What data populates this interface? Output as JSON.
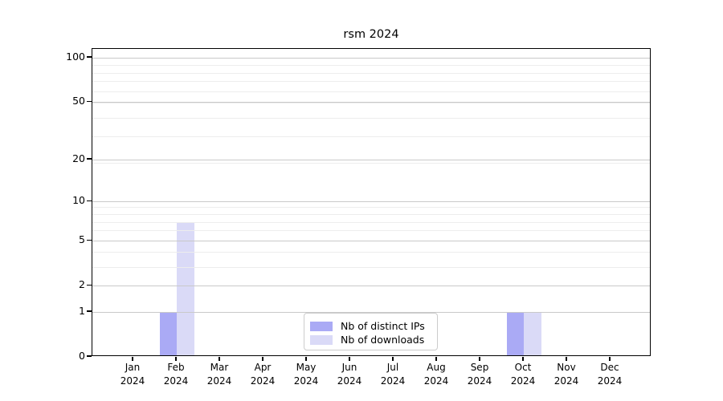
{
  "title": "rsm 2024",
  "chart_data": {
    "type": "bar",
    "title": "rsm 2024",
    "categories": [
      "Jan 2024",
      "Feb 2024",
      "Mar 2024",
      "Apr 2024",
      "May 2024",
      "Jun 2024",
      "Jul 2024",
      "Aug 2024",
      "Sep 2024",
      "Oct 2024",
      "Nov 2024",
      "Dec 2024"
    ],
    "series": [
      {
        "name": "Nb of distinct IPs",
        "color": "#aaaaf5",
        "values": [
          0,
          1,
          0,
          0,
          0,
          0,
          0,
          0,
          0,
          1,
          0,
          0
        ]
      },
      {
        "name": "Nb of downloads",
        "color": "#dadaf7",
        "values": [
          0,
          7,
          0,
          0,
          0,
          0,
          0,
          0,
          0,
          1,
          0,
          0
        ]
      }
    ],
    "xlabel": "",
    "ylabel": "",
    "yscale": "log1p",
    "ylim": [
      0,
      115
    ],
    "y_major_ticks": [
      0,
      1,
      2,
      5,
      10,
      20,
      50,
      100
    ],
    "y_minor_gridlines": [
      3,
      4,
      6,
      7,
      8,
      9,
      19,
      29,
      39,
      49,
      59,
      69,
      79,
      89,
      99
    ],
    "grid": "on",
    "legend_position": "lower center",
    "bar_layout": "grouped-pair",
    "colors": {
      "major_grid": "#c9c9c9",
      "minor_grid": "#ededed",
      "spine": "#000000",
      "background": "#ffffff",
      "text": "#000000"
    }
  }
}
